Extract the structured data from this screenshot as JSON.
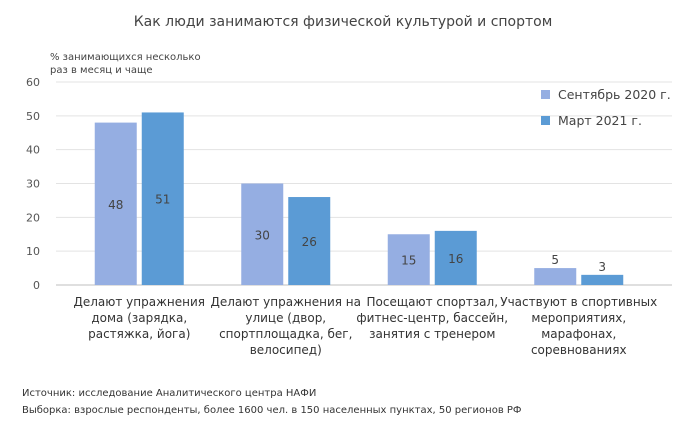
{
  "chart_data": {
    "type": "bar",
    "title": "Как люди занимаются физической культурой и спортом",
    "ylabel": "% занимающихся несколько раз в месяц и чаще",
    "xlabel": "",
    "ylim": [
      0,
      60
    ],
    "yticks": [
      0,
      10,
      20,
      30,
      40,
      50,
      60
    ],
    "grid": true,
    "legend_position": "top-right",
    "categories": [
      [
        "Делают упражнения",
        "дома (зарядка,",
        "растяжка, йога)"
      ],
      [
        "Делают упражнения на",
        "улице (двор,",
        "спортплощадка, бег,",
        "велосипед)"
      ],
      [
        "Посещают спортзал,",
        "фитнес-центр, бассейн,",
        "занятия с тренером"
      ],
      [
        "Участвуют в спортивных",
        "мероприятиях,",
        "марафонах,",
        "соревнованиях"
      ]
    ],
    "series": [
      {
        "name": "Сентябрь 2020 г.",
        "color": "#95aee2",
        "values": [
          48,
          30,
          15,
          5
        ]
      },
      {
        "name": "Март 2021 г.",
        "color": "#5b9bd5",
        "values": [
          51,
          26,
          16,
          3
        ]
      }
    ]
  },
  "source": {
    "line1": "Источник: исследование Аналитического центра НАФИ",
    "line2": "Выборка: взрослые респонденты, более 1600 чел. в 150 населенных пунктах, 50 регионов РФ"
  }
}
